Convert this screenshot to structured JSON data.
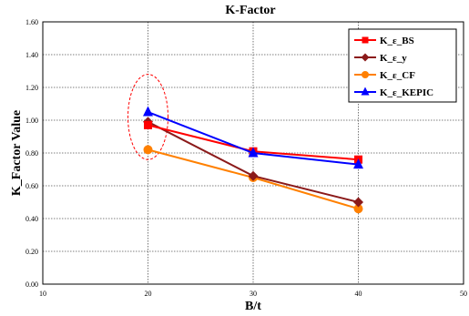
{
  "chart_data": {
    "type": "line",
    "title": "K-Factor",
    "xlabel": "B/t",
    "ylabel": "K_Factor Value",
    "xlim": [
      10,
      50
    ],
    "ylim": [
      0,
      1.6
    ],
    "x_ticks": [
      "10",
      "20",
      "30",
      "40",
      "50"
    ],
    "y_ticks": [
      "0.00",
      "0.20",
      "0.40",
      "0.60",
      "0.80",
      "1.00",
      "1.20",
      "1.40",
      "1.60"
    ],
    "grid": true,
    "legend_position": "top-right",
    "x": [
      20,
      30,
      40
    ],
    "series": [
      {
        "name": "K_ε_BS",
        "values": [
          0.97,
          0.81,
          0.76
        ],
        "color": "#ff0000",
        "marker": "square"
      },
      {
        "name": "K_ε_y",
        "values": [
          0.99,
          0.66,
          0.5
        ],
        "color": "#8b1a1a",
        "marker": "diamond"
      },
      {
        "name": "K_ε_CF",
        "values": [
          0.82,
          0.65,
          0.46
        ],
        "color": "#ff8000",
        "marker": "circle"
      },
      {
        "name": "K_ε_KEPIC",
        "values": [
          1.05,
          0.8,
          0.73
        ],
        "color": "#0000ff",
        "marker": "triangle"
      }
    ],
    "annotation": {
      "shape": "dashed-ellipse",
      "color": "#ff0000",
      "x": 20,
      "y_range": [
        0.76,
        1.28
      ]
    }
  }
}
